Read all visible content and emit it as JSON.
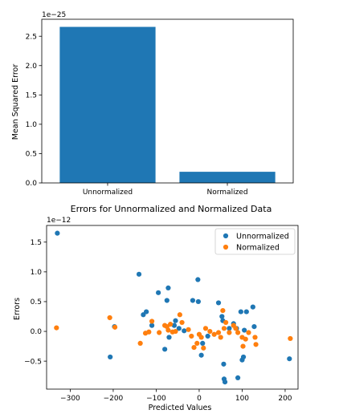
{
  "colors": {
    "blue": "#1f77b4",
    "orange": "#ff7f0e",
    "axis": "#000000",
    "legend_border": "#cccccc"
  },
  "chart_data": [
    {
      "type": "bar",
      "categories": [
        "Unnormalized",
        "Normalized"
      ],
      "values": [
        2.66e-25,
        1.9e-26
      ],
      "title": "",
      "xlabel": "",
      "ylabel": "Mean Squared Error",
      "ylim": [
        0,
        2.79e-25
      ],
      "y_ticks": [
        0,
        0.5,
        1.0,
        1.5,
        2.0,
        2.5
      ],
      "y_tick_labels": [
        "0.0",
        "0.5",
        "1.0",
        "1.5",
        "2.0",
        "2.5"
      ],
      "y_offset_text": "1e−25",
      "grid": false,
      "legend": "none"
    },
    {
      "type": "scatter",
      "title": "Errors for Unnormalized and Normalized Data",
      "xlabel": "Predicted Values",
      "ylabel": "Errors",
      "xlim": [
        -355,
        230
      ],
      "ylim": [
        -9.7e-13,
        1.78e-12
      ],
      "x_ticks": [
        -300,
        -200,
        -100,
        0,
        100,
        200
      ],
      "x_tick_labels": [
        "−300",
        "−200",
        "−100",
        "0",
        "100",
        "200"
      ],
      "y_ticks": [
        -0.5,
        0.0,
        0.5,
        1.0,
        1.5
      ],
      "y_tick_labels": [
        "−0.5",
        "0.0",
        "0.5",
        "1.0",
        "1.5"
      ],
      "y_offset_text": "1e−12",
      "grid": false,
      "legend": "top-right",
      "series": [
        {
          "name": "Unnormalized",
          "color": "#1f77b4",
          "points": [
            [
              -330,
              1.65
            ],
            [
              -207,
              -0.43
            ],
            [
              -197,
              0.08
            ],
            [
              -140,
              0.96
            ],
            [
              -130,
              0.28
            ],
            [
              -123,
              0.33
            ],
            [
              -110,
              0.1
            ],
            [
              -95,
              0.65
            ],
            [
              -80,
              -0.3
            ],
            [
              -75,
              0.52
            ],
            [
              -72,
              0.73
            ],
            [
              -70,
              -0.1
            ],
            [
              -58,
              0.1
            ],
            [
              -55,
              0.18
            ],
            [
              -47,
              0.05
            ],
            [
              -35,
              0.01
            ],
            [
              -15,
              0.52
            ],
            [
              -3,
              0.87
            ],
            [
              -2,
              0.5
            ],
            [
              5,
              -0.4
            ],
            [
              8,
              -0.2
            ],
            [
              20,
              -0.08
            ],
            [
              45,
              0.48
            ],
            [
              53,
              0.25
            ],
            [
              55,
              0.18
            ],
            [
              57,
              -0.55
            ],
            [
              58,
              -0.8
            ],
            [
              60,
              -0.85
            ],
            [
              70,
              0.05
            ],
            [
              80,
              0.13
            ],
            [
              87,
              0.05
            ],
            [
              90,
              -0.78
            ],
            [
              97,
              0.33
            ],
            [
              100,
              -0.48
            ],
            [
              103,
              -0.43
            ],
            [
              105,
              0.02
            ],
            [
              110,
              0.33
            ],
            [
              125,
              0.41
            ],
            [
              128,
              0.08
            ],
            [
              210,
              -0.46
            ]
          ]
        },
        {
          "name": "Normalized",
          "color": "#ff7f0e",
          "points": [
            [
              -332,
              0.06
            ],
            [
              -208,
              0.23
            ],
            [
              -196,
              0.07
            ],
            [
              -137,
              -0.2
            ],
            [
              -125,
              -0.03
            ],
            [
              -117,
              -0.01
            ],
            [
              -110,
              0.17
            ],
            [
              -93,
              -0.02
            ],
            [
              -80,
              0.1
            ],
            [
              -75,
              0.08
            ],
            [
              -72,
              0.02
            ],
            [
              -67,
              0.12
            ],
            [
              -62,
              -0.01
            ],
            [
              -55,
              0.0
            ],
            [
              -45,
              0.28
            ],
            [
              -40,
              0.15
            ],
            [
              -25,
              0.03
            ],
            [
              -18,
              -0.08
            ],
            [
              -12,
              -0.27
            ],
            [
              -5,
              -0.2
            ],
            [
              0,
              -0.05
            ],
            [
              5,
              -0.1
            ],
            [
              10,
              -0.28
            ],
            [
              15,
              0.05
            ],
            [
              25,
              0.0
            ],
            [
              35,
              -0.05
            ],
            [
              45,
              -0.02
            ],
            [
              50,
              -0.1
            ],
            [
              55,
              0.35
            ],
            [
              58,
              0.05
            ],
            [
              62,
              0.15
            ],
            [
              70,
              -0.02
            ],
            [
              80,
              0.1
            ],
            [
              85,
              0.05
            ],
            [
              90,
              -0.02
            ],
            [
              100,
              -0.1
            ],
            [
              102,
              -0.25
            ],
            [
              108,
              -0.13
            ],
            [
              115,
              -0.02
            ],
            [
              130,
              -0.1
            ],
            [
              132,
              -0.22
            ],
            [
              212,
              -0.12
            ]
          ]
        }
      ]
    }
  ]
}
